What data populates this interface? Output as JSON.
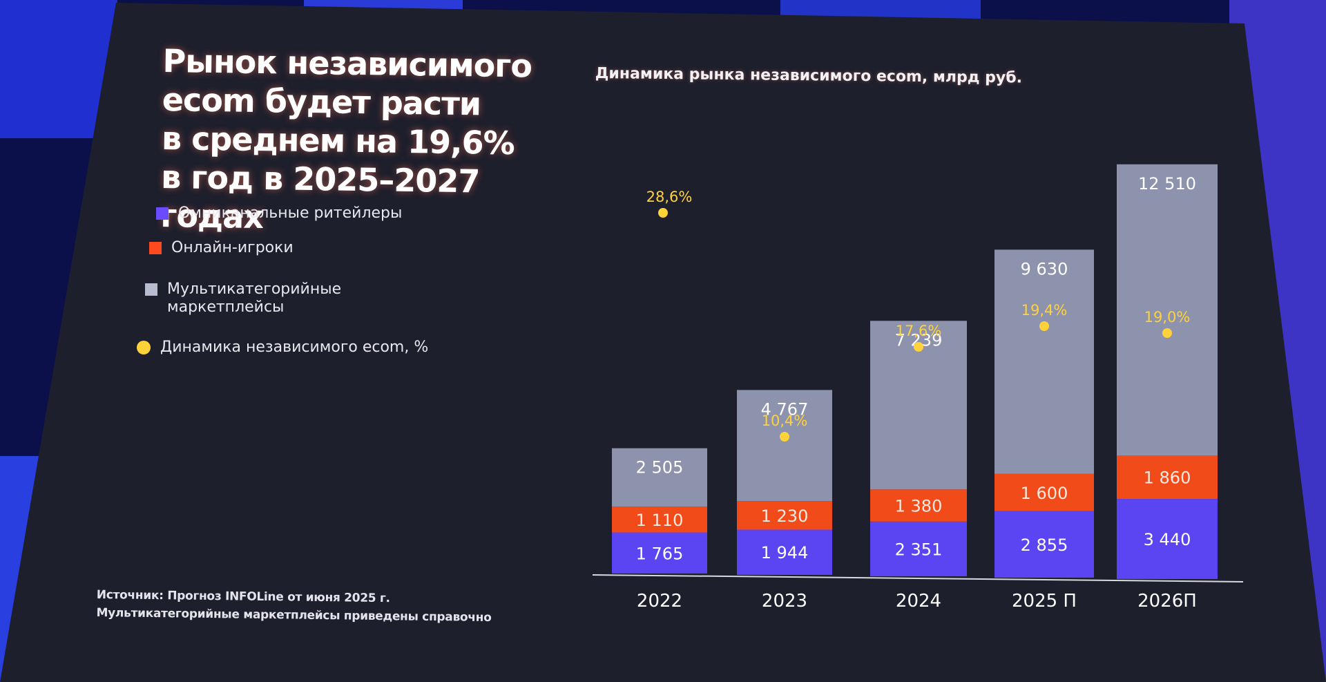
{
  "headline": {
    "lines": [
      "Рынок независимого",
      "ecom будет расти",
      "в среднем на 19,6%",
      "в год в 2025–2027 годах"
    ]
  },
  "legend": {
    "items": [
      {
        "label": "Омниканальные ритейлеры",
        "color": "#6b4bff",
        "marker": "square"
      },
      {
        "label": "Онлайн-игроки",
        "color": "#ff4a1f",
        "marker": "square"
      },
      {
        "label": "Мультикатегорийные\nмаркетплейсы",
        "color": "#b8bcd0",
        "marker": "square"
      },
      {
        "label": "Динамика независимого ecom, %",
        "color": "#ffd23a",
        "marker": "circle"
      }
    ]
  },
  "source": {
    "line1": "Источник: Прогноз INFOLine от июня 2025 г.",
    "line2": "Мультикатегорийные маркетплейсы приведены справочно"
  },
  "chart_data": {
    "type": "bar",
    "stacked": true,
    "title": "Динамика рынка независимого ecom, млрд руб.",
    "categories": [
      "2022",
      "2023",
      "2024",
      "2025 П",
      "2026П"
    ],
    "series": [
      {
        "name": "Омниканальные ритейлеры",
        "color": "#5b44f2",
        "values": [
          1765,
          1944,
          2351,
          2855,
          3440
        ],
        "labels": [
          "1 765",
          "1 944",
          "2 351",
          "2 855",
          "3 440"
        ]
      },
      {
        "name": "Онлайн-игроки",
        "color": "#f24b1a",
        "values": [
          1110,
          1230,
          1380,
          1600,
          1860
        ],
        "labels": [
          "1 110",
          "1 230",
          "1 380",
          "1 600",
          "1 860"
        ]
      },
      {
        "name": "Мультикатегорийные маркетплейсы",
        "color": "#8d92ad",
        "values": [
          2505,
          4767,
          7239,
          9630,
          12510
        ],
        "labels": [
          "2 505",
          "4 767",
          "7 239",
          "9 630",
          "12 510"
        ]
      }
    ],
    "growth": {
      "name": "Динамика независимого ecom, %",
      "color": "#ffd23a",
      "values": [
        28.6,
        10.4,
        17.6,
        19.4,
        19.0
      ],
      "labels": [
        "28,6%",
        "10,4%",
        "17,6%",
        "19,4%",
        "19,0%"
      ]
    },
    "legend_position": "left"
  }
}
